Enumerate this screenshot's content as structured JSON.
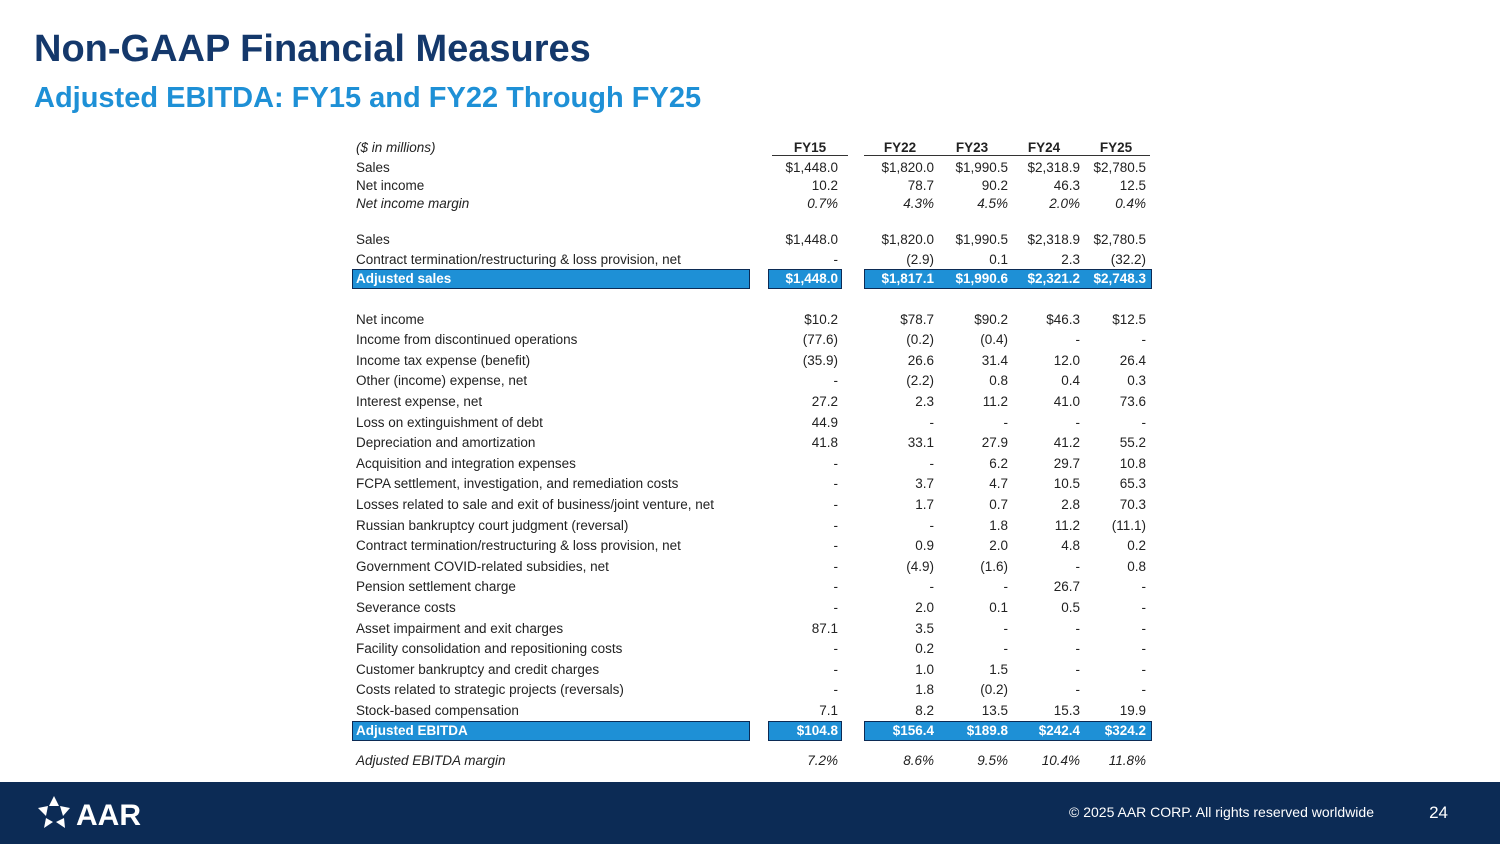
{
  "title": "Non-GAAP Financial Measures",
  "subtitle": "Adjusted EBITDA:  FY15 and FY22 Through FY25",
  "table": {
    "units": "($ in millions)",
    "columns": [
      "FY15",
      "FY22",
      "FY23",
      "FY24",
      "FY25"
    ],
    "rows": [
      {
        "label": "Sales",
        "values": [
          "$1,448.0",
          "$1,820.0",
          "$1,990.5",
          "$2,318.9",
          "$2,780.5"
        ]
      },
      {
        "label": "Net income",
        "values": [
          "10.2",
          "78.7",
          "90.2",
          "46.3",
          "12.5"
        ]
      },
      {
        "label": "Net income margin",
        "values": [
          "0.7%",
          "4.3%",
          "4.5%",
          "2.0%",
          "0.4%"
        ]
      },
      {
        "label": "Sales",
        "values": [
          "$1,448.0",
          "$1,820.0",
          "$1,990.5",
          "$2,318.9",
          "$2,780.5"
        ]
      },
      {
        "label": "Contract termination/restructuring & loss provision, net",
        "values": [
          "-",
          "(2.9)",
          "0.1",
          "2.3",
          "(32.2)"
        ]
      },
      {
        "label": "Adjusted sales",
        "values": [
          "$1,448.0",
          "$1,817.1",
          "$1,990.6",
          "$2,321.2",
          "$2,748.3"
        ]
      },
      {
        "label": "Net income",
        "values": [
          "$10.2",
          "$78.7",
          "$90.2",
          "$46.3",
          "$12.5"
        ]
      },
      {
        "label": "Income from discontinued operations",
        "values": [
          "(77.6)",
          "(0.2)",
          "(0.4)",
          "-",
          "-"
        ]
      },
      {
        "label": "Income tax expense (benefit)",
        "values": [
          "(35.9)",
          "26.6",
          "31.4",
          "12.0",
          "26.4"
        ]
      },
      {
        "label": "Other (income) expense, net",
        "values": [
          "-",
          "(2.2)",
          "0.8",
          "0.4",
          "0.3"
        ]
      },
      {
        "label": "Interest expense, net",
        "values": [
          "27.2",
          "2.3",
          "11.2",
          "41.0",
          "73.6"
        ]
      },
      {
        "label": "Loss on extinguishment of debt",
        "values": [
          "44.9",
          "-",
          "-",
          "-",
          "-"
        ]
      },
      {
        "label": "Depreciation and amortization",
        "values": [
          "41.8",
          "33.1",
          "27.9",
          "41.2",
          "55.2"
        ]
      },
      {
        "label": "Acquisition and integration expenses",
        "values": [
          "-",
          "-",
          "6.2",
          "29.7",
          "10.8"
        ]
      },
      {
        "label": "FCPA settlement, investigation, and remediation costs",
        "values": [
          "-",
          "3.7",
          "4.7",
          "10.5",
          "65.3"
        ]
      },
      {
        "label": "Losses related to sale and exit of business/joint venture, net",
        "values": [
          "-",
          "1.7",
          "0.7",
          "2.8",
          "70.3"
        ]
      },
      {
        "label": "Russian bankruptcy court judgment (reversal)",
        "values": [
          "-",
          "-",
          "1.8",
          "11.2",
          "(11.1)"
        ]
      },
      {
        "label": "Contract termination/restructuring & loss provision, net",
        "values": [
          "-",
          "0.9",
          "2.0",
          "4.8",
          "0.2"
        ]
      },
      {
        "label": "Government COVID-related subsidies, net",
        "values": [
          "-",
          "(4.9)",
          "(1.6)",
          "-",
          "0.8"
        ]
      },
      {
        "label": "Pension settlement charge",
        "values": [
          "-",
          "-",
          "-",
          "26.7",
          "-"
        ]
      },
      {
        "label": "Severance costs",
        "values": [
          "-",
          "2.0",
          "0.1",
          "0.5",
          "-"
        ]
      },
      {
        "label": "Asset impairment and exit charges",
        "values": [
          "87.1",
          "3.5",
          "-",
          "-",
          "-"
        ]
      },
      {
        "label": "Facility consolidation and repositioning costs",
        "values": [
          "-",
          "0.2",
          "-",
          "-",
          "-"
        ]
      },
      {
        "label": "Customer bankruptcy and credit charges",
        "values": [
          "-",
          "1.0",
          "1.5",
          "-",
          "-"
        ]
      },
      {
        "label": "Costs related to strategic projects (reversals)",
        "values": [
          "-",
          "1.8",
          "(0.2)",
          "-",
          "-"
        ]
      },
      {
        "label": "Stock-based compensation",
        "values": [
          "7.1",
          "8.2",
          "13.5",
          "15.3",
          "19.9"
        ]
      },
      {
        "label": "Adjusted EBITDA",
        "values": [
          "$104.8",
          "$156.4",
          "$189.8",
          "$242.4",
          "$324.2"
        ]
      },
      {
        "label": "Adjusted EBITDA margin",
        "values": [
          "7.2%",
          "8.6%",
          "9.5%",
          "10.4%",
          "11.8%"
        ]
      }
    ]
  },
  "footer": {
    "logo_text": "AAR",
    "copyright": "© 2025 AAR CORP. All rights reserved worldwide",
    "page_number": "24"
  },
  "colors": {
    "navy": "#0c2b55",
    "title": "#14386b",
    "accent": "#1e90d6"
  }
}
